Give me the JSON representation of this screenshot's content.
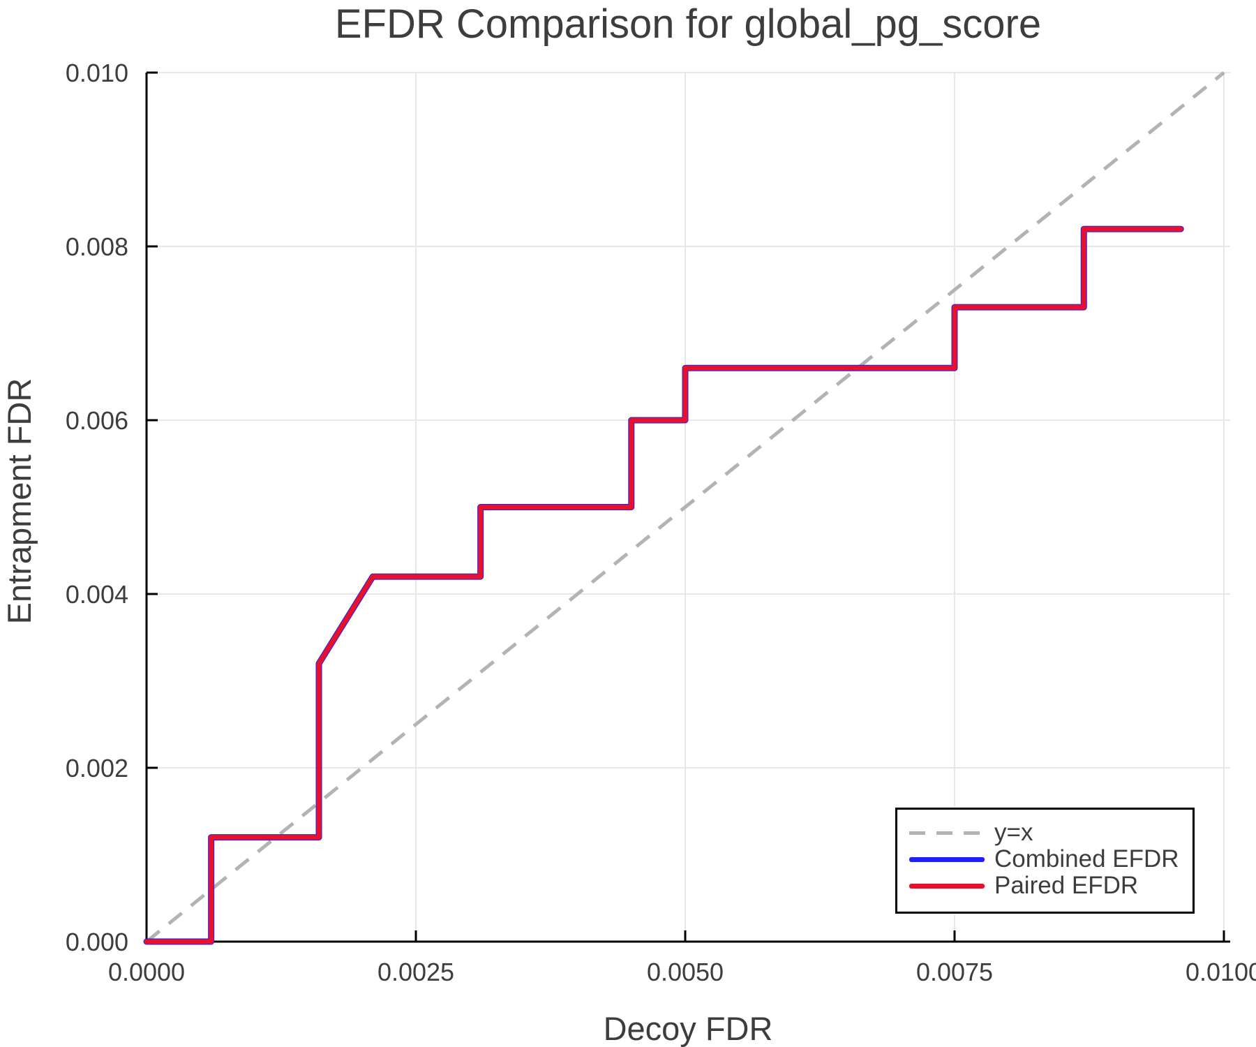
{
  "title": "EFDR Comparison for global_pg_score",
  "colors": {
    "background": "#ffffff",
    "grid": "#e7e7e7",
    "spine": "#000000",
    "text": "#3d3d3d",
    "reference": "#b3b3b3",
    "combined": "#1e1eff",
    "paired": "#e8112b"
  },
  "chart_data": {
    "type": "line",
    "title": "EFDR Comparison for global_pg_score",
    "xlabel": "Decoy FDR",
    "ylabel": "Entrapment FDR",
    "xlim": [
      0,
      0.01
    ],
    "ylim": [
      0,
      0.01
    ],
    "grid": true,
    "legend_position": "lower right inset",
    "x_ticks": [
      0,
      0.0025,
      0.005,
      0.0075,
      0.01
    ],
    "x_tick_labels": [
      "0.0000",
      "0.0025",
      "0.0050",
      "0.0075",
      "0.0100"
    ],
    "y_ticks": [
      0,
      0.002,
      0.004,
      0.006,
      0.008,
      0.01
    ],
    "y_tick_labels": [
      "0.000",
      "0.002",
      "0.004",
      "0.006",
      "0.008",
      "0.010"
    ],
    "series": [
      {
        "name": "y=x",
        "style": "dashed",
        "color": "#b3b3b3",
        "points": [
          [
            0,
            0
          ],
          [
            0.01,
            0.01
          ]
        ]
      },
      {
        "name": "Combined EFDR",
        "style": "solid",
        "color": "#1e1eff",
        "points": [
          [
            0,
            0
          ],
          [
            0.0006,
            0
          ],
          [
            0.0006,
            0.0012
          ],
          [
            0.0016,
            0.0012
          ],
          [
            0.0016,
            0.0032
          ],
          [
            0.0021,
            0.0042
          ],
          [
            0.0031,
            0.0042
          ],
          [
            0.0031,
            0.005
          ],
          [
            0.0045,
            0.005
          ],
          [
            0.0045,
            0.006
          ],
          [
            0.005,
            0.006
          ],
          [
            0.005,
            0.0066
          ],
          [
            0.0075,
            0.0066
          ],
          [
            0.0075,
            0.0073
          ],
          [
            0.0087,
            0.0073
          ],
          [
            0.0087,
            0.0082
          ],
          [
            0.0096,
            0.0082
          ]
        ]
      },
      {
        "name": "Paired EFDR",
        "style": "solid",
        "color": "#e8112b",
        "points": [
          [
            0,
            0
          ],
          [
            0.0006,
            0
          ],
          [
            0.0006,
            0.0012
          ],
          [
            0.0016,
            0.0012
          ],
          [
            0.0016,
            0.0032
          ],
          [
            0.0021,
            0.0042
          ],
          [
            0.0031,
            0.0042
          ],
          [
            0.0031,
            0.005
          ],
          [
            0.0045,
            0.005
          ],
          [
            0.0045,
            0.006
          ],
          [
            0.005,
            0.006
          ],
          [
            0.005,
            0.0066
          ],
          [
            0.0075,
            0.0066
          ],
          [
            0.0075,
            0.0073
          ],
          [
            0.0087,
            0.0073
          ],
          [
            0.0087,
            0.0082
          ],
          [
            0.0096,
            0.0082
          ]
        ]
      }
    ]
  }
}
